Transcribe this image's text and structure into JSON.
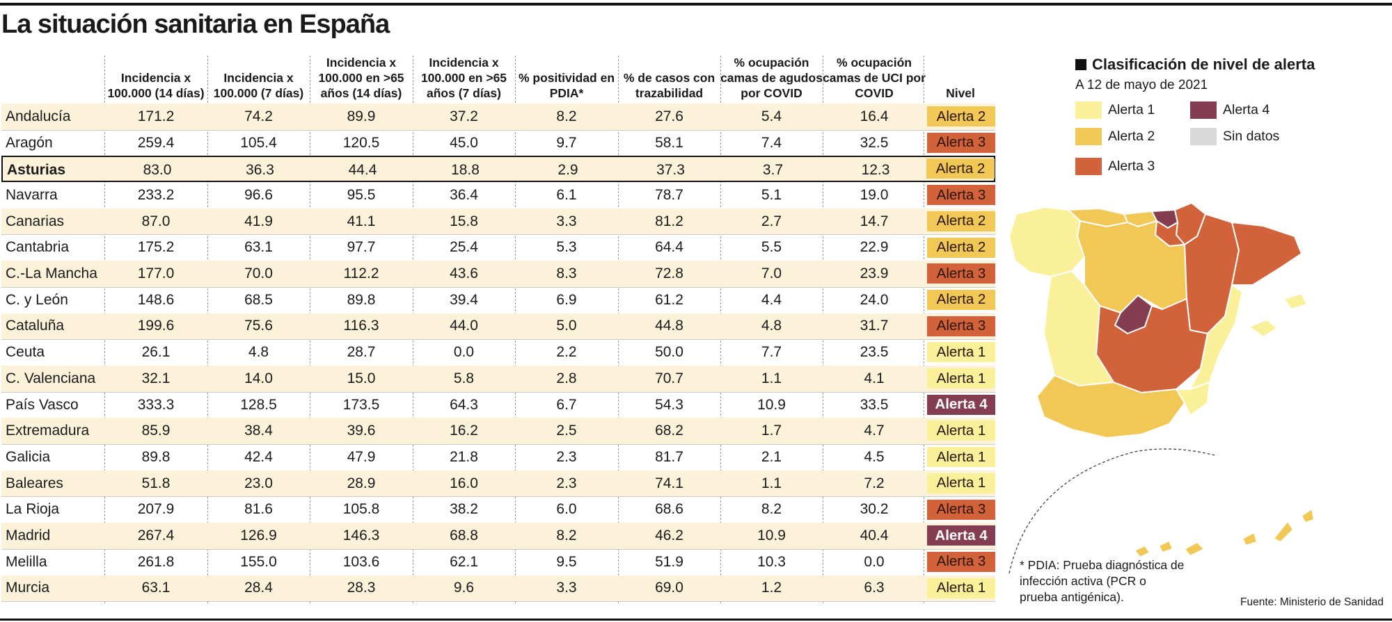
{
  "title": "La situación sanitaria en España",
  "chart_data": {
    "type": "table",
    "columns": [
      {
        "key": "region",
        "label": ""
      },
      {
        "key": "inc14",
        "label": "Incidencia x 100.000 (14 días)"
      },
      {
        "key": "inc7",
        "label": "Incidencia x 100.000 (7 días)"
      },
      {
        "key": "inc65_14",
        "label": "Incidencia x 100.000 en >65 años (14 días)"
      },
      {
        "key": "inc65_7",
        "label": "Incidencia x 100.000 en >65 años (7 días)"
      },
      {
        "key": "pos",
        "label": "% positividad en PDIA*"
      },
      {
        "key": "traz",
        "label": "% de casos con trazabilidad"
      },
      {
        "key": "agudos",
        "label": "% ocupación camas de agudos por COVID"
      },
      {
        "key": "uci",
        "label": "% ocupación camas de UCI por COVID"
      },
      {
        "key": "nivel",
        "label": "Nivel"
      }
    ],
    "rows": [
      {
        "region": "Andalucía",
        "values": [
          "171.2",
          "74.2",
          "89.9",
          "37.2",
          "8.2",
          "27.6",
          "5.4",
          "16.4"
        ],
        "nivel": "Alerta 2",
        "level": 2
      },
      {
        "region": "Aragón",
        "values": [
          "259.4",
          "105.4",
          "120.5",
          "45.0",
          "9.7",
          "58.1",
          "7.4",
          "32.5"
        ],
        "nivel": "Alerta 3",
        "level": 3
      },
      {
        "region": "Asturias",
        "values": [
          "83.0",
          "36.3",
          "44.4",
          "18.8",
          "2.9",
          "37.3",
          "3.7",
          "12.3"
        ],
        "nivel": "Alerta 2",
        "level": 2,
        "highlight": true
      },
      {
        "region": "Navarra",
        "values": [
          "233.2",
          "96.6",
          "95.5",
          "36.4",
          "6.1",
          "78.7",
          "5.1",
          "19.0"
        ],
        "nivel": "Alerta 3",
        "level": 3
      },
      {
        "region": "Canarias",
        "values": [
          "87.0",
          "41.9",
          "41.1",
          "15.8",
          "3.3",
          "81.2",
          "2.7",
          "14.7"
        ],
        "nivel": "Alerta 2",
        "level": 2
      },
      {
        "region": "Cantabria",
        "values": [
          "175.2",
          "63.1",
          "97.7",
          "25.4",
          "5.3",
          "64.4",
          "5.5",
          "22.9"
        ],
        "nivel": "Alerta 2",
        "level": 2
      },
      {
        "region": "C.-La Mancha",
        "values": [
          "177.0",
          "70.0",
          "112.2",
          "43.6",
          "8.3",
          "72.8",
          "7.0",
          "23.9"
        ],
        "nivel": "Alerta 3",
        "level": 3
      },
      {
        "region": "C. y León",
        "values": [
          "148.6",
          "68.5",
          "89.8",
          "39.4",
          "6.9",
          "61.2",
          "4.4",
          "24.0"
        ],
        "nivel": "Alerta 2",
        "level": 2
      },
      {
        "region": "Cataluña",
        "values": [
          "199.6",
          "75.6",
          "116.3",
          "44.0",
          "5.0",
          "44.8",
          "4.8",
          "31.7"
        ],
        "nivel": "Alerta 3",
        "level": 3
      },
      {
        "region": "Ceuta",
        "values": [
          "26.1",
          "4.8",
          "28.7",
          "0.0",
          "2.2",
          "50.0",
          "7.7",
          "23.5"
        ],
        "nivel": "Alerta 1",
        "level": 1
      },
      {
        "region": "C. Valenciana",
        "values": [
          "32.1",
          "14.0",
          "15.0",
          "5.8",
          "2.8",
          "70.7",
          "1.1",
          "4.1"
        ],
        "nivel": "Alerta 1",
        "level": 1
      },
      {
        "region": "País Vasco",
        "values": [
          "333.3",
          "128.5",
          "173.5",
          "64.3",
          "6.7",
          "54.3",
          "10.9",
          "33.5"
        ],
        "nivel": "Alerta 4",
        "level": 4
      },
      {
        "region": "Extremadura",
        "values": [
          "85.9",
          "38.4",
          "39.6",
          "16.2",
          "2.5",
          "68.2",
          "1.7",
          "4.7"
        ],
        "nivel": "Alerta 1",
        "level": 1
      },
      {
        "region": "Galicia",
        "values": [
          "89.8",
          "42.4",
          "47.9",
          "21.8",
          "2.3",
          "81.7",
          "2.1",
          "4.5"
        ],
        "nivel": "Alerta 1",
        "level": 1
      },
      {
        "region": "Baleares",
        "values": [
          "51.8",
          "23.0",
          "28.9",
          "16.0",
          "2.3",
          "74.1",
          "1.1",
          "7.2"
        ],
        "nivel": "Alerta 1",
        "level": 1
      },
      {
        "region": "La Rioja",
        "values": [
          "207.9",
          "81.6",
          "105.8",
          "38.2",
          "6.0",
          "68.6",
          "8.2",
          "30.2"
        ],
        "nivel": "Alerta 3",
        "level": 3
      },
      {
        "region": "Madrid",
        "values": [
          "267.4",
          "126.9",
          "146.3",
          "68.8",
          "8.2",
          "46.2",
          "10.9",
          "40.4"
        ],
        "nivel": "Alerta 4",
        "level": 4
      },
      {
        "region": "Melilla",
        "values": [
          "261.8",
          "155.0",
          "103.6",
          "62.1",
          "9.5",
          "51.9",
          "10.3",
          "0.0"
        ],
        "nivel": "Alerta 3",
        "level": 3
      },
      {
        "region": "Murcia",
        "values": [
          "63.1",
          "28.4",
          "28.3",
          "9.6",
          "3.3",
          "69.0",
          "1.2",
          "6.3"
        ],
        "nivel": "Alerta 1",
        "level": 1
      }
    ]
  },
  "legend": {
    "title": "Clasificación de nivel de alerta",
    "subtitle": "A 12 de mayo de 2021",
    "items": [
      {
        "label": "Alerta 1",
        "color": "#fbf09a"
      },
      {
        "label": "Alerta 2",
        "color": "#f1c856"
      },
      {
        "label": "Alerta 3",
        "color": "#d1623a"
      },
      {
        "label": "Alerta 4",
        "color": "#853d52"
      },
      {
        "label": "Sin datos",
        "color": "#d9d9d9"
      }
    ]
  },
  "map_colors": {
    "alerta1": "#fbf09a",
    "alerta2": "#f1c856",
    "alerta3": "#d1623a",
    "alerta4": "#853d52"
  },
  "note": "* PDIA: Prueba diagnóstica de infección activa (PCR o prueba antigénica).",
  "source": "Fuente: Ministerio de Sanidad"
}
